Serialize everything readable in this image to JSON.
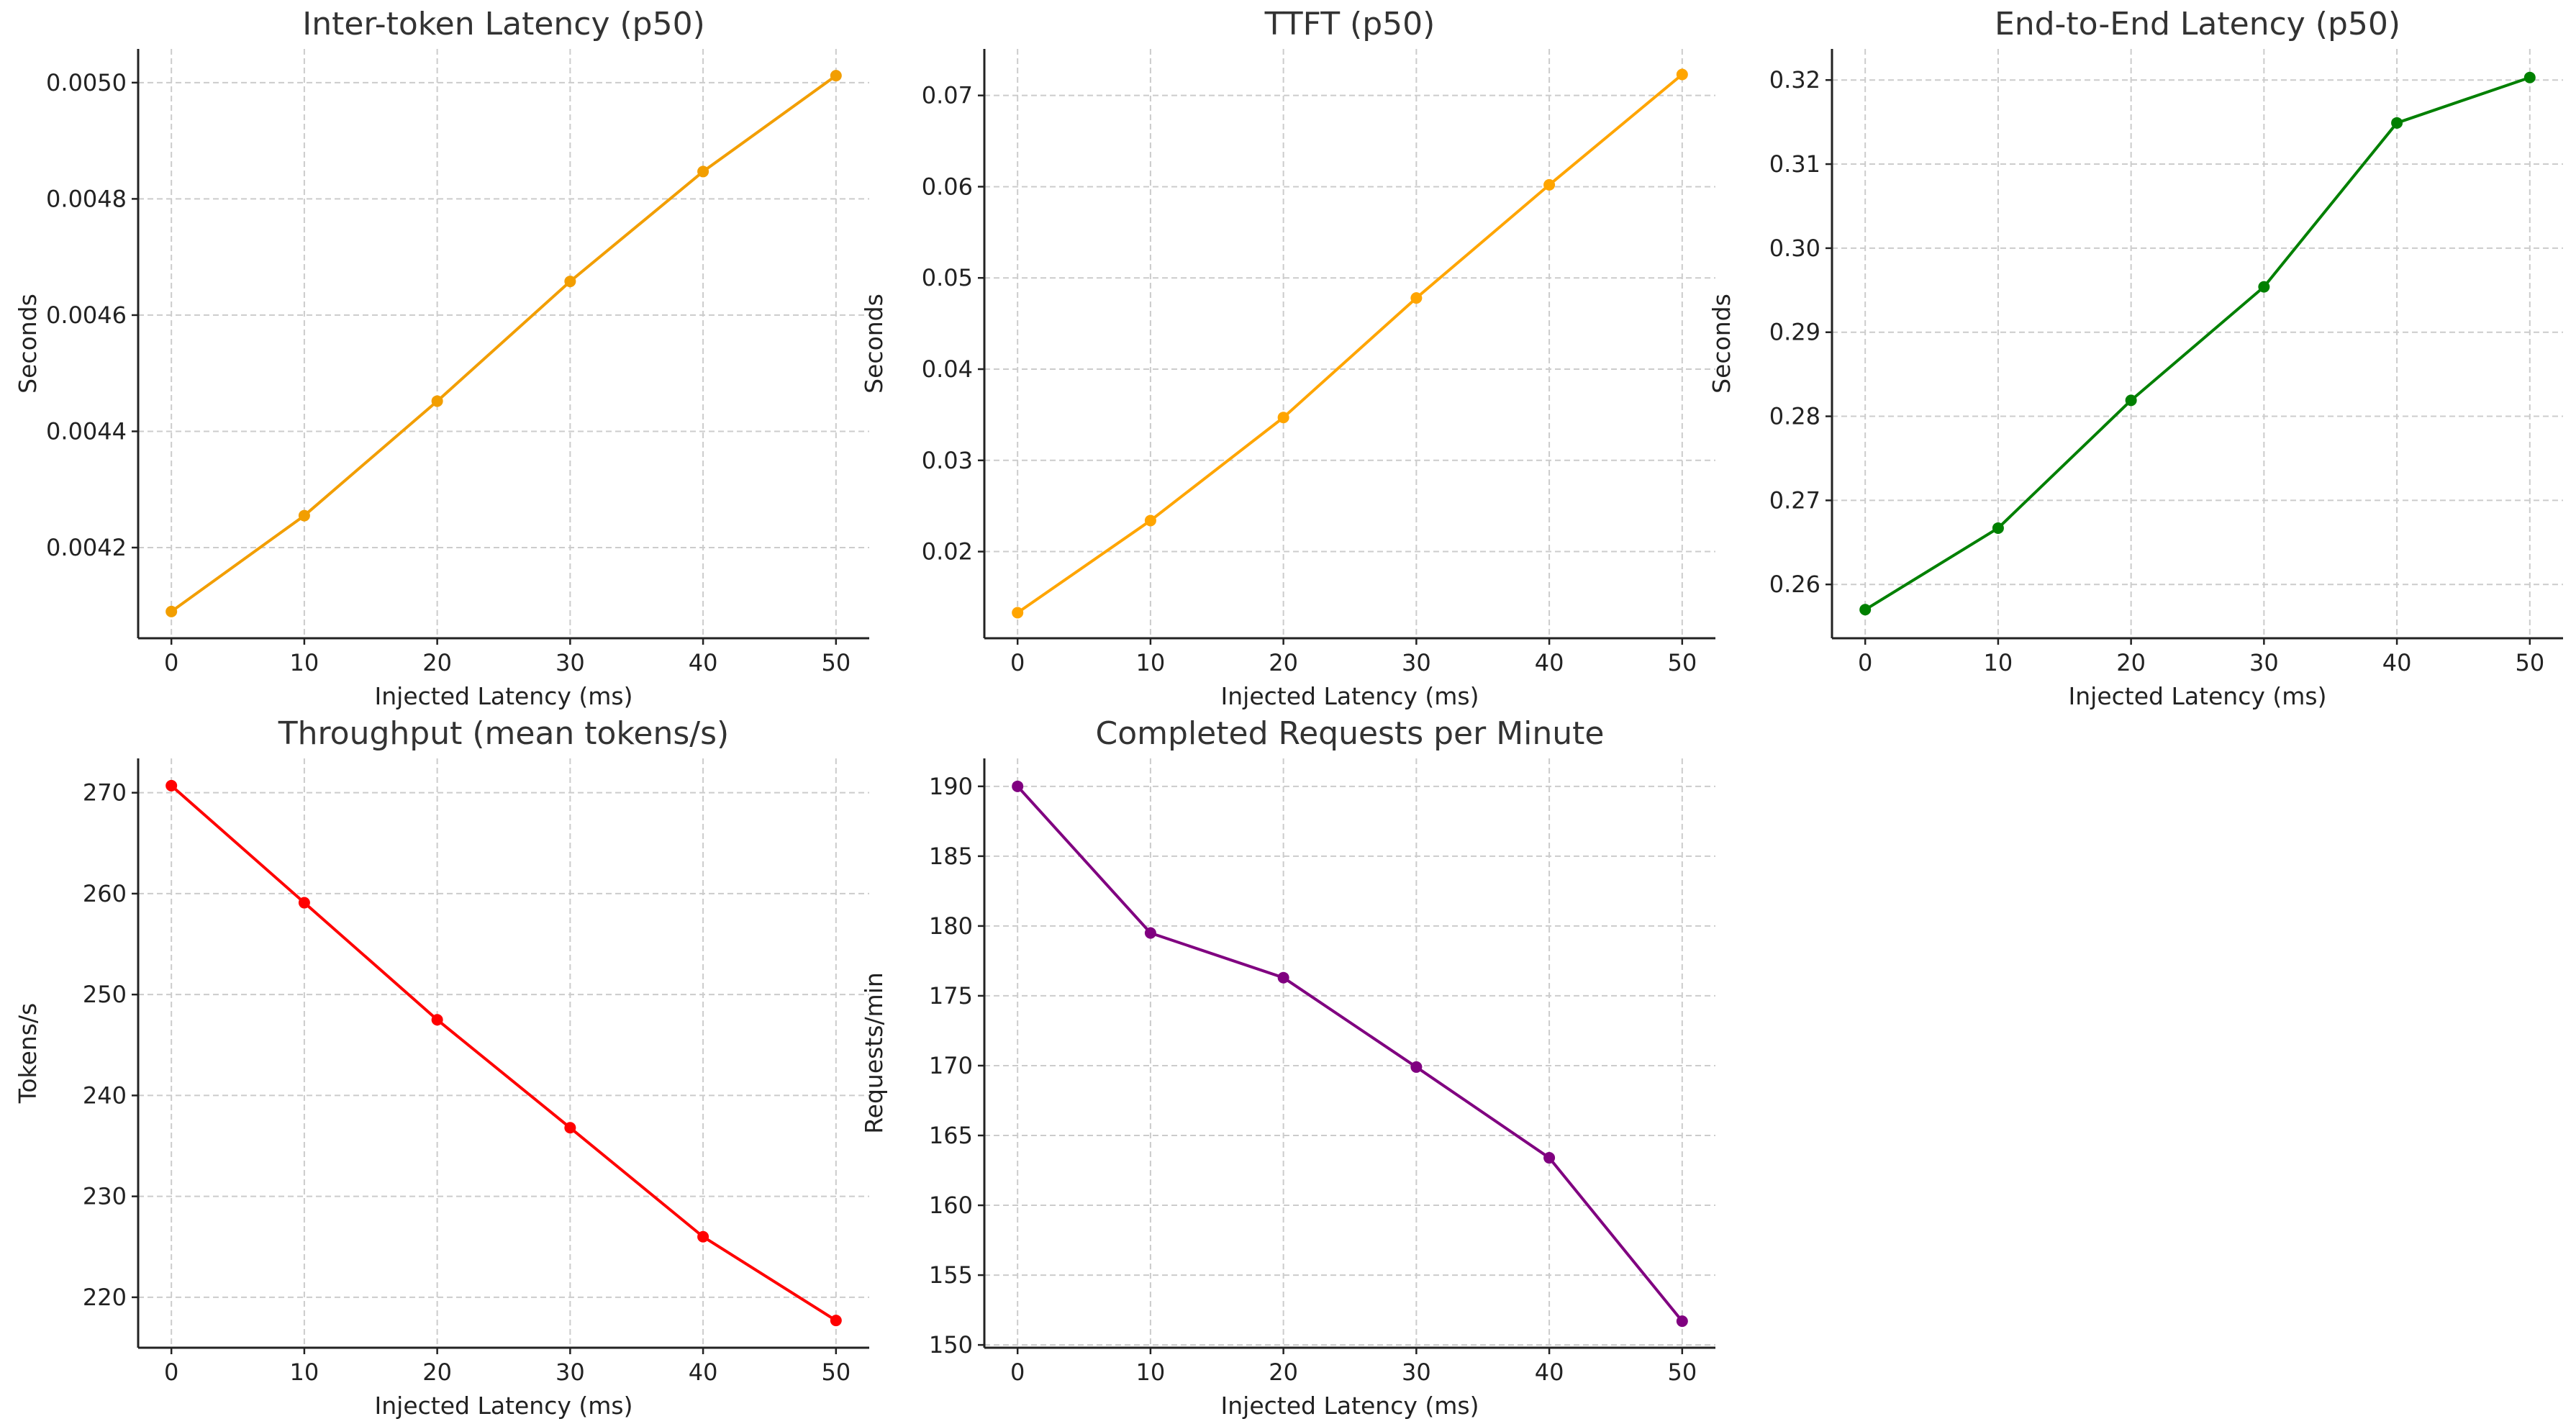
{
  "chart_data": [
    {
      "type": "line",
      "title": "Inter-token Latency (p50)",
      "xlabel": "Injected Latency (ms)",
      "ylabel": "Seconds",
      "x": [
        0,
        10,
        20,
        30,
        40,
        50
      ],
      "xticks": [
        "0",
        "10",
        "20",
        "30",
        "40",
        "50"
      ],
      "xlim": [
        -2.5,
        52.5
      ],
      "series": [
        {
          "values": [
            0.00409,
            0.004255,
            0.004452,
            0.004658,
            0.004847,
            0.005012
          ],
          "color": "#f29e00"
        }
      ],
      "yticks": [
        "0.0042",
        "0.0044",
        "0.0046",
        "0.0048",
        "0.0050"
      ],
      "ytick_values": [
        0.0042,
        0.0044,
        0.0046,
        0.0048,
        0.005
      ],
      "ylim": [
        0.004044,
        0.005058
      ],
      "grid": true
    },
    {
      "type": "line",
      "title": "TTFT (p50)",
      "xlabel": "Injected Latency (ms)",
      "ylabel": "Seconds",
      "x": [
        0,
        10,
        20,
        30,
        40,
        50
      ],
      "xticks": [
        "0",
        "10",
        "20",
        "30",
        "40",
        "50"
      ],
      "xlim": [
        -2.5,
        52.5
      ],
      "series": [
        {
          "values": [
            0.0133,
            0.0234,
            0.0347,
            0.0478,
            0.0602,
            0.0723
          ],
          "color": "#ffa500"
        }
      ],
      "yticks": [
        "0.02",
        "0.03",
        "0.04",
        "0.05",
        "0.06",
        "0.07"
      ],
      "ytick_values": [
        0.02,
        0.03,
        0.04,
        0.05,
        0.06,
        0.07
      ],
      "ylim": [
        0.0105,
        0.0751
      ],
      "grid": true
    },
    {
      "type": "line",
      "title": "End-to-End Latency (p50)",
      "xlabel": "Injected Latency (ms)",
      "ylabel": "Seconds",
      "x": [
        0,
        10,
        20,
        30,
        40,
        50
      ],
      "xticks": [
        "0",
        "10",
        "20",
        "30",
        "40",
        "50"
      ],
      "xlim": [
        -2.5,
        52.5
      ],
      "series": [
        {
          "values": [
            0.257,
            0.2667,
            0.2819,
            0.2954,
            0.3149,
            0.3203
          ],
          "color": "#008000"
        }
      ],
      "yticks": [
        "0.26",
        "0.27",
        "0.28",
        "0.29",
        "0.30",
        "0.31",
        "0.32"
      ],
      "ytick_values": [
        0.26,
        0.27,
        0.28,
        0.29,
        0.3,
        0.31,
        0.32
      ],
      "ylim": [
        0.2536,
        0.3237
      ],
      "grid": true
    },
    {
      "type": "line",
      "title": "Throughput (mean tokens/s)",
      "xlabel": "Injected Latency (ms)",
      "ylabel": "Tokens/s",
      "x": [
        0,
        10,
        20,
        30,
        40,
        50
      ],
      "xticks": [
        "0",
        "10",
        "20",
        "30",
        "40",
        "50"
      ],
      "xlim": [
        -2.5,
        52.5
      ],
      "series": [
        {
          "values": [
            270.7,
            259.1,
            247.5,
            236.8,
            226.0,
            217.7
          ],
          "color": "#ff0000"
        }
      ],
      "yticks": [
        "220",
        "230",
        "240",
        "250",
        "260",
        "270"
      ],
      "ytick_values": [
        220,
        230,
        240,
        250,
        260,
        270
      ],
      "ylim": [
        215.0,
        273.4
      ],
      "grid": true
    },
    {
      "type": "line",
      "title": "Completed Requests per Minute",
      "xlabel": "Injected Latency (ms)",
      "ylabel": "Requests/min",
      "x": [
        0,
        10,
        20,
        30,
        40,
        50
      ],
      "xticks": [
        "0",
        "10",
        "20",
        "30",
        "40",
        "50"
      ],
      "xlim": [
        -2.5,
        52.5
      ],
      "series": [
        {
          "values": [
            190.0,
            179.5,
            176.3,
            169.9,
            163.4,
            151.7
          ],
          "color": "#800080"
        }
      ],
      "yticks": [
        "150",
        "155",
        "160",
        "165",
        "170",
        "175",
        "180",
        "185",
        "190"
      ],
      "ytick_values": [
        150,
        155,
        160,
        165,
        170,
        175,
        180,
        185,
        190
      ],
      "ylim": [
        149.8,
        192.0
      ],
      "grid": true
    }
  ]
}
